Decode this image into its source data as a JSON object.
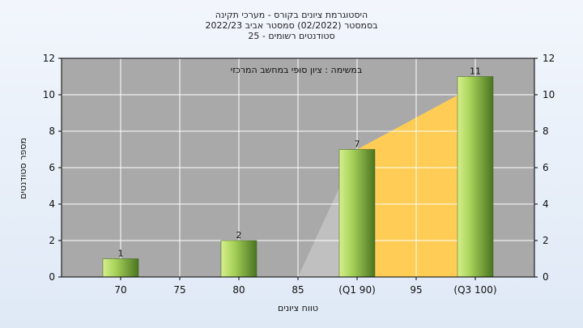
{
  "chart_data": {
    "type": "bar",
    "title_lines": [
      "היסטוגרמת ציונים בקורס - מערכי תקינה",
      "בסמסטר  (02/2022)  סמסטר אביב 2022/23",
      "25 - סטודנטים רשומים"
    ],
    "annotation": "במשימה : ציון סופי במחשב המרכזי",
    "xlabel": "טווח ציונים",
    "ylabel": "מספר סטודנטים",
    "x_tick_labels": [
      "70",
      "75",
      "80",
      "85",
      "(Q1 90)",
      "95",
      "(Q3 100)"
    ],
    "x_ticks": [
      70,
      75,
      80,
      85,
      90,
      95,
      100
    ],
    "xlim": [
      65,
      105
    ],
    "ylim": [
      0,
      12
    ],
    "y_ticks": [
      0,
      2,
      4,
      6,
      8,
      10,
      12
    ],
    "y_tick_labels": [
      "0",
      "2",
      "4",
      "6",
      "8",
      "10",
      "12"
    ],
    "bars": [
      {
        "x": 70,
        "value": 1,
        "label": "1"
      },
      {
        "x": 80,
        "value": 2,
        "label": "2"
      },
      {
        "x": 90,
        "value": 7,
        "label": "7"
      },
      {
        "x": 100,
        "value": 11,
        "label": "11"
      }
    ],
    "bands": [
      {
        "name": "below-q1",
        "from_x": 85,
        "to_x": 90,
        "from_y": 0,
        "to_y": 7,
        "color": "#c0c0c0"
      },
      {
        "name": "q1-q3",
        "from_x": 90,
        "to_x": 100,
        "from_y": 7,
        "to_y": 10.5,
        "color": "#ffcc55"
      }
    ],
    "grid": true,
    "colors": {
      "plot_bg": "#a9a9a9",
      "grid": "#ffffff",
      "bar_light": "#c5e47a",
      "bar_dark": "#4f7a22",
      "band_gray": "#c0c0c0",
      "band_gold": "#ffcc55"
    }
  }
}
